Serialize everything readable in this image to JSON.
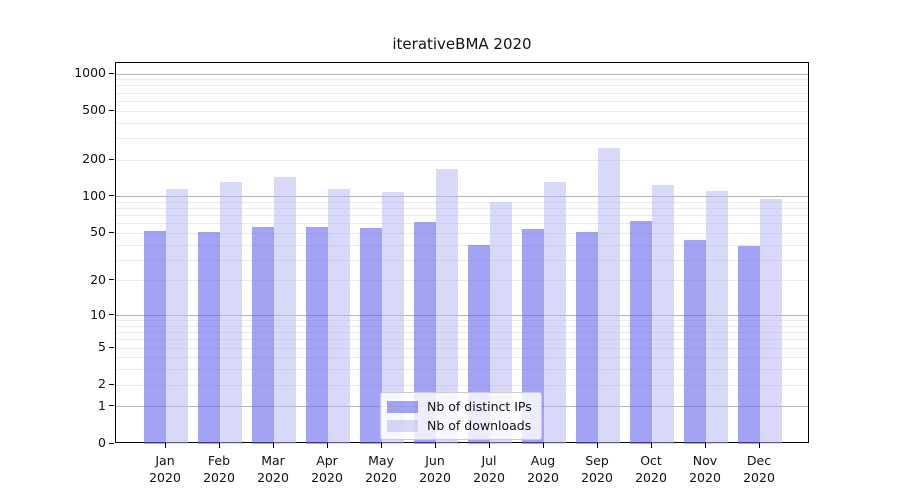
{
  "chart_data": {
    "type": "bar",
    "title": "iterativeBMA 2020",
    "categories": [
      "Jan",
      "Feb",
      "Mar",
      "Apr",
      "May",
      "Jun",
      "Jul",
      "Aug",
      "Sep",
      "Oct",
      "Nov",
      "Dec"
    ],
    "x_second_line": "2020",
    "series": [
      {
        "name": "Nb of distinct IPs",
        "values": [
          52,
          51,
          57,
          57,
          55,
          62,
          40,
          54,
          51,
          63,
          44,
          39
        ],
        "color": "rgba(102,102,238,0.60)",
        "color_solid": "#a3a3f0"
      },
      {
        "name": "Nb of downloads",
        "values": [
          115,
          132,
          146,
          115,
          110,
          170,
          91,
          132,
          251,
          124,
          112,
          96
        ],
        "color": "rgba(180,180,243,0.52)",
        "color_solid": "#d8d8f8"
      }
    ],
    "y_axis": {
      "scale": "log1p",
      "ticks": [
        1000,
        500,
        200,
        100,
        50,
        20,
        10,
        5,
        2,
        1,
        0
      ],
      "max": 1229,
      "major_grid_color": "#b3b3b3",
      "minor_grid_color": "#eaeaea"
    },
    "legend": {
      "position": "bottom-center",
      "entries": [
        "Nb of distinct IPs",
        "Nb of downloads"
      ]
    },
    "grid": "horizontal log minor+major",
    "background": "#ffffff"
  }
}
